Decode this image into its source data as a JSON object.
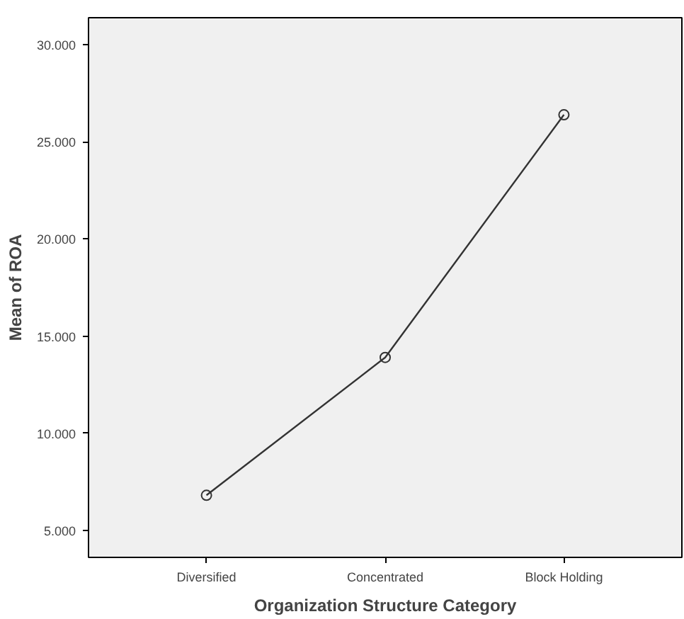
{
  "chart_data": {
    "type": "line",
    "xlabel": "Organization Structure Category",
    "ylabel": "Mean of ROA",
    "categories": [
      "Diversified",
      "Concentrated",
      "Block Holding"
    ],
    "values": [
      6.8,
      13.9,
      26.4
    ],
    "color": "#333333",
    "marker": "circle",
    "grid": false,
    "ylim": [
      3.6,
      31.4
    ],
    "yticks": [
      {
        "value": 5,
        "label": "5.000"
      },
      {
        "value": 10,
        "label": "10.000"
      },
      {
        "value": 15,
        "label": "15.000"
      },
      {
        "value": 20,
        "label": "20.000"
      },
      {
        "value": 25,
        "label": "25.000"
      },
      {
        "value": 30,
        "label": "30.000"
      }
    ]
  }
}
